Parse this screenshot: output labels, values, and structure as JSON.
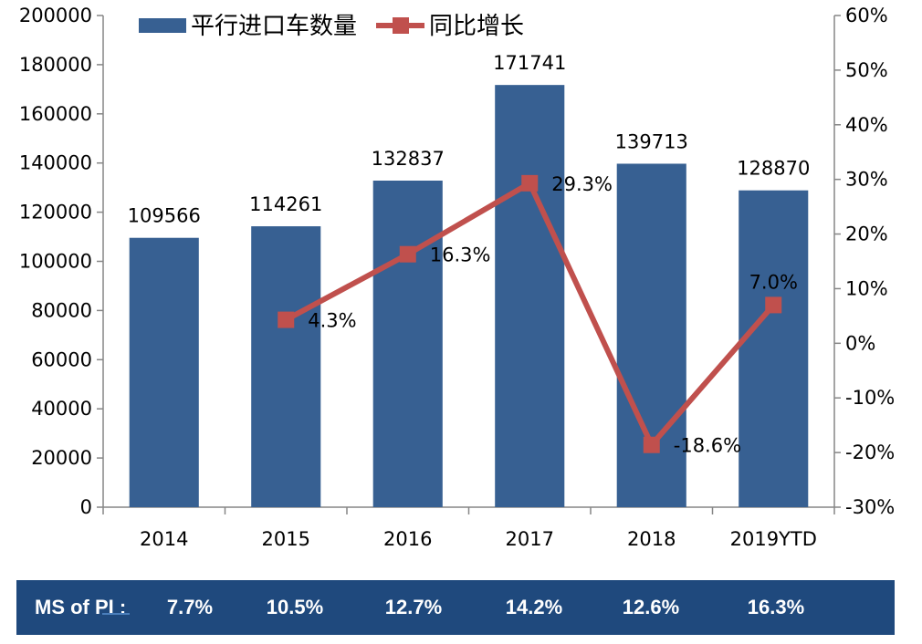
{
  "chart_data": {
    "type": "bar+line",
    "categories": [
      "2014",
      "2015",
      "2016",
      "2017",
      "2018",
      "2019YTD"
    ],
    "series": [
      {
        "name": "平行进口车数量",
        "type": "bar",
        "axis": "left",
        "color": "#376092",
        "values": [
          109566,
          114261,
          132837,
          171741,
          139713,
          128870
        ],
        "labels": [
          "109566",
          "114261",
          "132837",
          "171741",
          "139713",
          "128870"
        ]
      },
      {
        "name": "同比增长",
        "type": "line",
        "axis": "right",
        "color": "#c0504d",
        "values": [
          null,
          4.3,
          16.3,
          29.3,
          -18.6,
          7.0
        ],
        "labels": [
          "",
          "4.3%",
          "16.3%",
          "29.3%",
          "-18.6%",
          "7.0%"
        ]
      }
    ],
    "y_left": {
      "lim": [
        0,
        200000
      ],
      "ticks": [
        "0",
        "20000",
        "40000",
        "60000",
        "80000",
        "100000",
        "120000",
        "140000",
        "160000",
        "180000",
        "200000"
      ]
    },
    "y_right": {
      "lim": [
        -30,
        60
      ],
      "ticks": [
        "-30%",
        "-20%",
        "-10%",
        "0%",
        "10%",
        "20%",
        "30%",
        "40%",
        "50%",
        "60%"
      ]
    },
    "legend_position": "top",
    "grid": false
  },
  "ms_row": {
    "label": "MS of PI :",
    "values": [
      "7.7%",
      "10.5%",
      "12.7%",
      "14.2%",
      "12.6%",
      "16.3%"
    ],
    "color": "#1f497d"
  }
}
